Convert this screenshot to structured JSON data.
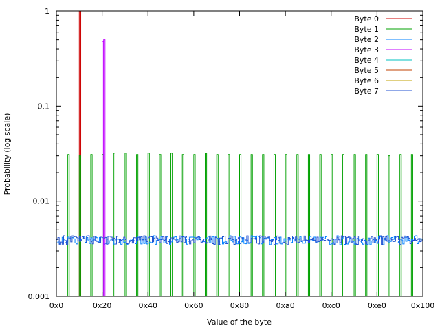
{
  "chart_data": {
    "type": "line",
    "xlabel": "Value of the byte",
    "ylabel": "Probability (log scale)",
    "xlim": [
      0,
      256
    ],
    "ylim": [
      0.001,
      1
    ],
    "y_scale": "log",
    "x_ticks": [
      {
        "value": 0,
        "label": "0x0"
      },
      {
        "value": 32,
        "label": "0x20"
      },
      {
        "value": 64,
        "label": "0x40"
      },
      {
        "value": 96,
        "label": "0x60"
      },
      {
        "value": 128,
        "label": "0x80"
      },
      {
        "value": 160,
        "label": "0xa0"
      },
      {
        "value": 192,
        "label": "0xc0"
      },
      {
        "value": 224,
        "label": "0xe0"
      },
      {
        "value": 256,
        "label": "0x100"
      }
    ],
    "y_ticks": [
      {
        "value": 0.001,
        "label": "0.001"
      },
      {
        "value": 0.01,
        "label": "0.01"
      },
      {
        "value": 0.1,
        "label": "0.1"
      },
      {
        "value": 1,
        "label": "1"
      }
    ],
    "grid": false,
    "legend_position": "top-right",
    "series": [
      {
        "name": "Byte 0",
        "color": "#cc0000",
        "style": "impulse",
        "points": [
          [
            16,
            1
          ],
          [
            17,
            1
          ]
        ]
      },
      {
        "name": "Byte 1",
        "color": "#00a000",
        "style": "impulse",
        "points": [
          [
            8,
            0.031
          ],
          [
            16,
            0.03
          ],
          [
            24,
            0.031
          ],
          [
            32,
            0.031
          ],
          [
            40,
            0.032
          ],
          [
            48,
            0.032
          ],
          [
            56,
            0.031
          ],
          [
            64,
            0.032
          ],
          [
            72,
            0.031
          ],
          [
            80,
            0.032
          ],
          [
            88,
            0.031
          ],
          [
            96,
            0.031
          ],
          [
            104,
            0.032
          ],
          [
            112,
            0.031
          ],
          [
            120,
            0.031
          ],
          [
            128,
            0.031
          ],
          [
            136,
            0.031
          ],
          [
            144,
            0.031
          ],
          [
            152,
            0.031
          ],
          [
            160,
            0.031
          ],
          [
            168,
            0.031
          ],
          [
            176,
            0.031
          ],
          [
            184,
            0.031
          ],
          [
            192,
            0.031
          ],
          [
            200,
            0.031
          ],
          [
            208,
            0.031
          ],
          [
            216,
            0.031
          ],
          [
            224,
            0.031
          ],
          [
            232,
            0.03
          ],
          [
            240,
            0.031
          ],
          [
            248,
            0.031
          ]
        ]
      },
      {
        "name": "Byte 2",
        "color": "#0080ff",
        "style": "noise",
        "base": 0.0039,
        "points": []
      },
      {
        "name": "Byte 3",
        "color": "#c000ff",
        "style": "impulse",
        "points": [
          [
            32,
            0.48
          ],
          [
            33,
            0.5
          ]
        ]
      },
      {
        "name": "Byte 4",
        "color": "#00c0c0",
        "style": "impulse",
        "points": []
      },
      {
        "name": "Byte 5",
        "color": "#c04000",
        "style": "impulse",
        "points": []
      },
      {
        "name": "Byte 6",
        "color": "#c0a000",
        "style": "impulse",
        "points": []
      },
      {
        "name": "Byte 7",
        "color": "#2050d0",
        "style": "noise",
        "base": 0.0039,
        "points": []
      }
    ]
  }
}
